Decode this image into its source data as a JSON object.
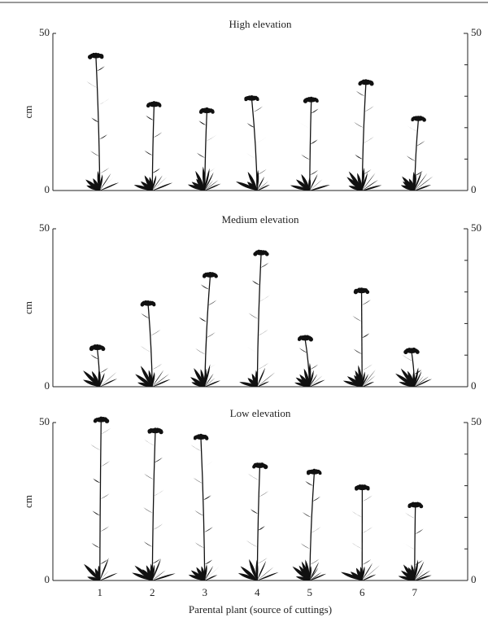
{
  "chart_data": [
    {
      "type": "plant",
      "title": "High elevation",
      "ylabel": "cm",
      "values": [
        43.5,
        28,
        26,
        30,
        29.5,
        35,
        23.5
      ],
      "ylim": [
        0,
        50
      ],
      "yticks": [
        0,
        50
      ],
      "y2ticks": [
        0,
        50
      ],
      "minor_y2ticks": [
        10,
        20,
        30,
        40
      ],
      "color": "#111111"
    },
    {
      "type": "plant",
      "title": "Medium elevation",
      "ylabel": "cm",
      "values": [
        13,
        27,
        36,
        43,
        16,
        31,
        12
      ],
      "ylim": [
        0,
        50
      ],
      "yticks": [
        0,
        50
      ],
      "y2ticks": [
        0,
        50
      ],
      "minor_y2ticks": [
        10,
        20,
        30,
        40
      ],
      "color": "#111111"
    },
    {
      "type": "plant",
      "title": "Low elevation",
      "ylabel": "cm",
      "xlabel": "Parental plant (source of cuttings)",
      "categories": [
        "1",
        "2",
        "3",
        "4",
        "5",
        "6",
        "7"
      ],
      "values": [
        51.5,
        48,
        46,
        37,
        35,
        30,
        24.5
      ],
      "ylim": [
        0,
        50
      ],
      "yticks": [
        0,
        50
      ],
      "y2ticks": [
        0,
        50
      ],
      "minor_y2ticks": [
        10,
        20,
        30,
        40
      ],
      "color": "#111111"
    }
  ]
}
